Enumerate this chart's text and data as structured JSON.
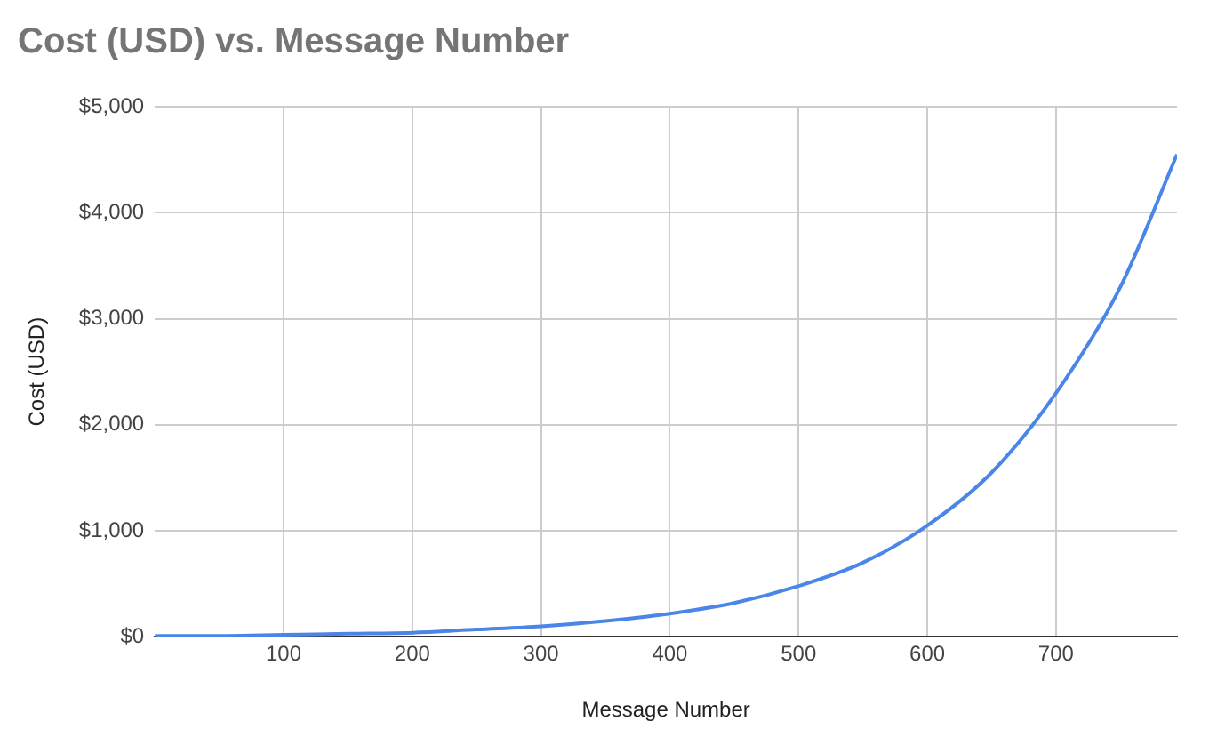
{
  "chart_data": {
    "type": "line",
    "title": "Cost (USD) vs. Message Number",
    "xlabel": "Message Number",
    "ylabel": "Cost (USD)",
    "x": [
      0,
      50,
      100,
      150,
      200,
      250,
      300,
      350,
      400,
      450,
      500,
      550,
      600,
      650,
      700,
      750,
      794
    ],
    "series": [
      {
        "color": "#4a86e8",
        "values": [
          10,
          10,
          20,
          30,
          40,
          70,
          100,
          150,
          220,
          320,
          480,
          700,
          1050,
          1550,
          2300,
          3300,
          4550
        ]
      }
    ],
    "xlim": [
      0,
      794
    ],
    "xticks": [
      100,
      200,
      300,
      400,
      500,
      600,
      700
    ],
    "ylim": [
      0,
      5000
    ],
    "yticks": [
      {
        "value": 0,
        "label": "$0"
      },
      {
        "value": 1000,
        "label": "$1,000"
      },
      {
        "value": 2000,
        "label": "$2,000"
      },
      {
        "value": 3000,
        "label": "$3,000"
      },
      {
        "value": 4000,
        "label": "$4,000"
      },
      {
        "value": 5000,
        "label": "$5,000"
      }
    ],
    "grid": true,
    "legend": false,
    "marker": "none",
    "line_style": "solid"
  }
}
